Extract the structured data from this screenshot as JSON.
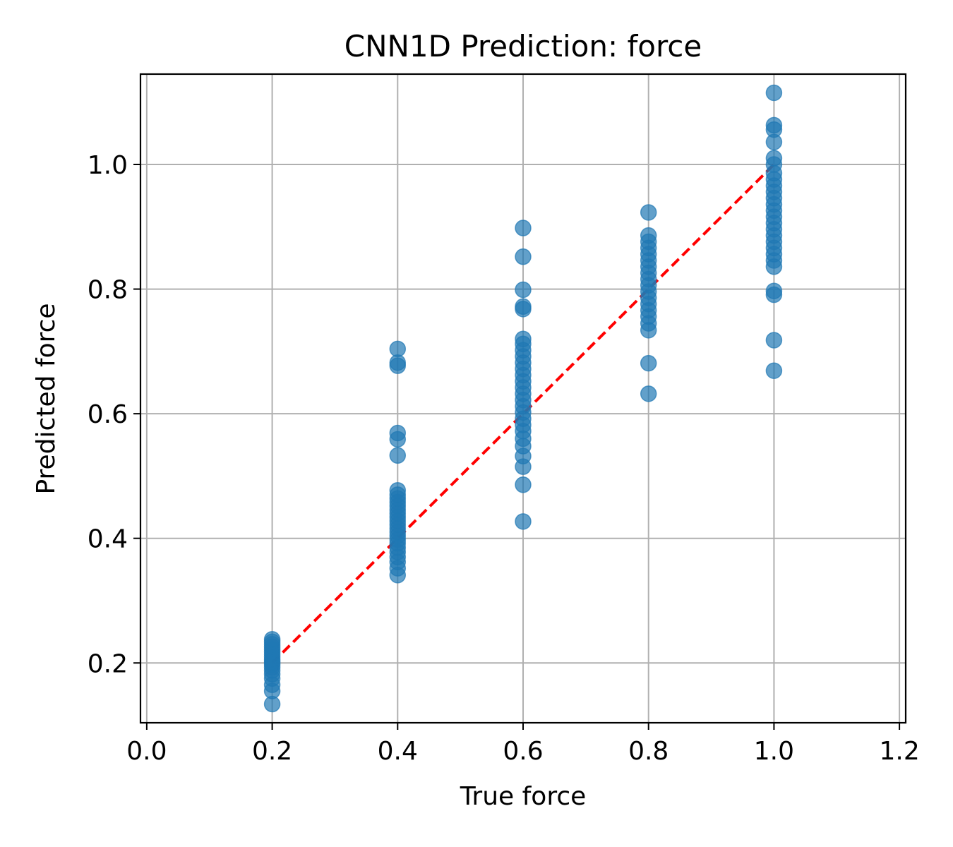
{
  "chart_data": {
    "type": "scatter",
    "title": "CNN1D Prediction: force",
    "xlabel": "True force",
    "ylabel": "Predicted force",
    "xlim": [
      -0.01,
      1.21
    ],
    "ylim": [
      0.104,
      1.145
    ],
    "xticks": [
      "0.0",
      "0.2",
      "0.4",
      "0.6",
      "0.8",
      "1.0",
      "1.2"
    ],
    "yticks": [
      "0.2",
      "0.4",
      "0.6",
      "0.8",
      "1.0"
    ],
    "grid": true,
    "point_color": "#1f77b4",
    "reference_line": {
      "x": [
        0.2,
        1.0
      ],
      "y": [
        0.2,
        1.0
      ],
      "color": "#ff0000",
      "style": "dashed"
    },
    "series": [
      {
        "x": 0.2,
        "values": [
          0.134,
          0.155,
          0.165,
          0.175,
          0.182,
          0.188,
          0.193,
          0.197,
          0.2,
          0.203,
          0.206,
          0.21,
          0.214,
          0.218,
          0.222,
          0.226,
          0.23,
          0.234,
          0.238
        ]
      },
      {
        "x": 0.4,
        "values": [
          0.341,
          0.352,
          0.362,
          0.37,
          0.378,
          0.385,
          0.392,
          0.398,
          0.404,
          0.41,
          0.416,
          0.422,
          0.428,
          0.434,
          0.44,
          0.446,
          0.452,
          0.458,
          0.464,
          0.47,
          0.477,
          0.533,
          0.559,
          0.569,
          0.677,
          0.682,
          0.704
        ]
      },
      {
        "x": 0.6,
        "values": [
          0.427,
          0.486,
          0.515,
          0.532,
          0.548,
          0.56,
          0.572,
          0.582,
          0.592,
          0.602,
          0.612,
          0.622,
          0.632,
          0.642,
          0.652,
          0.662,
          0.672,
          0.682,
          0.692,
          0.702,
          0.712,
          0.72,
          0.768,
          0.772,
          0.799,
          0.852,
          0.898
        ]
      },
      {
        "x": 0.8,
        "values": [
          0.632,
          0.681,
          0.734,
          0.745,
          0.756,
          0.766,
          0.776,
          0.786,
          0.796,
          0.806,
          0.816,
          0.826,
          0.836,
          0.846,
          0.856,
          0.866,
          0.876,
          0.886,
          0.923
        ]
      },
      {
        "x": 1.0,
        "values": [
          0.669,
          0.718,
          0.791,
          0.797,
          0.836,
          0.846,
          0.856,
          0.866,
          0.876,
          0.886,
          0.896,
          0.906,
          0.916,
          0.926,
          0.936,
          0.946,
          0.956,
          0.966,
          0.976,
          0.986,
          1.0,
          1.01,
          1.036,
          1.056,
          1.063,
          1.115
        ]
      }
    ]
  }
}
